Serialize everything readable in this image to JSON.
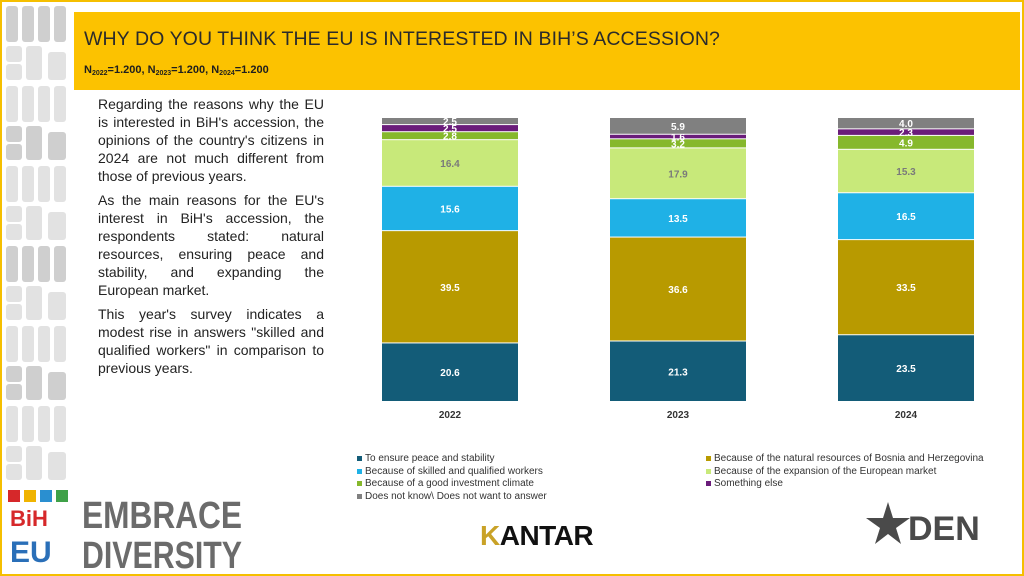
{
  "header": {
    "title": "WHY DO YOU THINK THE EU IS INTERESTED IN BIH’S ACCESSION?",
    "sample": [
      {
        "base": "N",
        "sub": "2022",
        "value": "=1.200, "
      },
      {
        "base": "N",
        "sub": "2023",
        "value": "=1.200, "
      },
      {
        "base": "N",
        "sub": "2024",
        "value": "=1.200"
      }
    ]
  },
  "body_text": {
    "p1": "Regarding the reasons why the EU is interested in BiH's accession, the opinions of the country's citizens in 2024 are not much different from those of previous years.",
    "p2": "As the main reasons for the EU's interest in BiH's accession, the respondents stated: natural resources, ensuring peace and stability, and expanding the European market.",
    "p3": "This year's survey indicates a modest rise in answers \"skilled and qualified workers\" in comparison to previous years."
  },
  "logo_left": {
    "line1": "EMBRACE",
    "line2": "DIVERSITY",
    "mark_top": "BiH",
    "mark_bottom": "EU"
  },
  "kantar": {
    "k": "K",
    "rest": "ANTAR"
  },
  "den_logo": {
    "text": "DEN"
  },
  "chart_data": {
    "type": "bar",
    "stacked": true,
    "categories": [
      "2022",
      "2023",
      "2024"
    ],
    "series": [
      {
        "name": "To ensure peace and stability",
        "color": "#135c78",
        "values": [
          20.6,
          21.3,
          23.5
        ]
      },
      {
        "name": "Because of the natural resources of Bosnia and Herzegovina",
        "color": "#b89a00",
        "values": [
          39.5,
          36.6,
          33.5
        ]
      },
      {
        "name": "Because of skilled and qualified workers",
        "color": "#1fb1e6",
        "values": [
          15.6,
          13.5,
          16.5
        ]
      },
      {
        "name": "Because of the expansion of the European market",
        "color": "#c8e97a",
        "values": [
          16.4,
          17.9,
          15.3
        ]
      },
      {
        "name": "Because of a good investment climate",
        "color": "#86b82c",
        "values": [
          2.8,
          3.2,
          4.9
        ]
      },
      {
        "name": "Something else",
        "color": "#6a1c7a",
        "values": [
          2.5,
          1.6,
          2.3
        ]
      },
      {
        "name": "Does not know\\ Does not want to answer",
        "color": "#808080",
        "values": [
          2.5,
          5.9,
          4.0
        ]
      }
    ],
    "legend_order": [
      0,
      1,
      2,
      3,
      4,
      5,
      6
    ],
    "legend_position": "bottom",
    "ylim": [
      0,
      100
    ],
    "grid": false
  }
}
